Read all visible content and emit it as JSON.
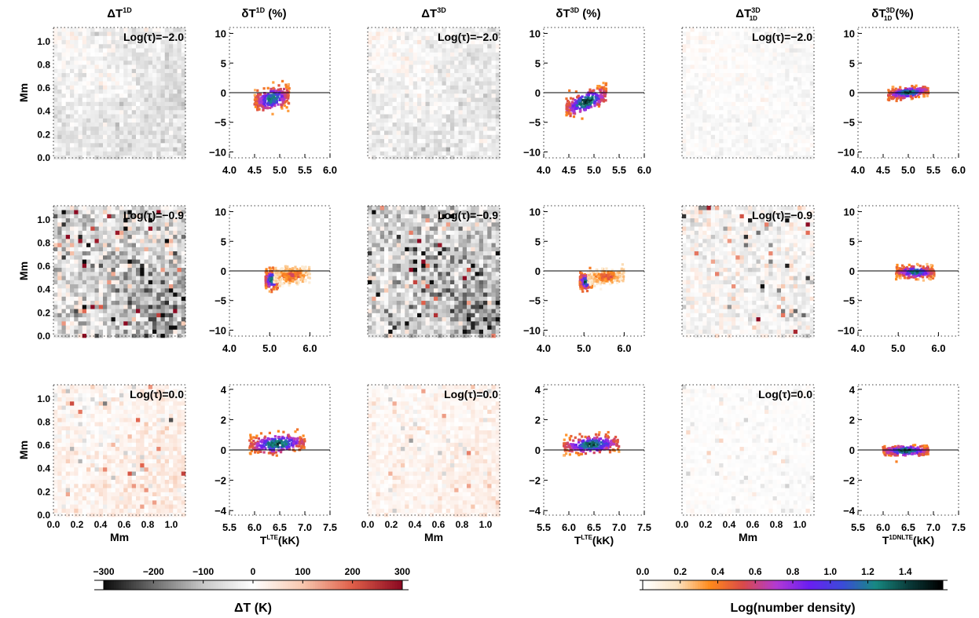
{
  "figure": {
    "column_titles": [
      {
        "main": "ΔT",
        "sup": "1D",
        "sub": "",
        "tail": ""
      },
      {
        "main": "δT",
        "sup": "1D",
        "sub": "",
        "tail": " (%)"
      },
      {
        "main": "ΔT",
        "sup": "3D",
        "sub": "",
        "tail": ""
      },
      {
        "main": "δT",
        "sup": "3D",
        "sub": "",
        "tail": " (%)"
      },
      {
        "main": "ΔT",
        "sup": "3D",
        "sub": "1D",
        "tail": ""
      },
      {
        "main": "δT",
        "sup": "3D",
        "sub": "1D",
        "tail": " (%)"
      }
    ],
    "row_labels": [
      "Log(τ)=−2.0",
      "Log(τ)=−0.9",
      "Log(τ)=0.0"
    ],
    "map_axis_label": "Mm",
    "map_ticks": [
      "0.0",
      "0.2",
      "0.4",
      "0.6",
      "0.8",
      "1.0"
    ],
    "map_tick_values": [
      0.0,
      0.2,
      0.4,
      0.6,
      0.8,
      1.0
    ],
    "scatter_xlabels": [
      {
        "main": "T",
        "sup": "LTE",
        "tail": "(kK)"
      },
      {
        "main": "T",
        "sup": "LTE",
        "tail": "(kK)"
      },
      {
        "main": "T",
        "sup": "1DNLTE",
        "tail": "(kK)"
      }
    ],
    "colorbar_left": {
      "label": "ΔT (K)",
      "ticks": [
        "−300",
        "−200",
        "−100",
        "0",
        "100",
        "200",
        "300"
      ],
      "tick_values": [
        -300,
        -200,
        -100,
        0,
        100,
        200,
        300
      ],
      "range": [
        -300,
        300
      ],
      "colors": [
        "#0d0d0d",
        "#6e6e6e",
        "#c8c8c8",
        "#ffffff",
        "#f7c8b0",
        "#e0604a",
        "#8c0a22"
      ]
    },
    "colorbar_right": {
      "label": "Log(number density)",
      "ticks": [
        "0.0",
        "0.2",
        "0.4",
        "0.6",
        "0.8",
        "1.0",
        "1.2",
        "1.4"
      ],
      "tick_values": [
        0,
        0.2,
        0.4,
        0.6,
        0.8,
        1.0,
        1.2,
        1.4
      ],
      "range": [
        0,
        1.6
      ],
      "colors": [
        "#ffffff",
        "#fbe3c2",
        "#ff8a1a",
        "#d94a4a",
        "#b23ad3",
        "#6a1ef2",
        "#3b4bd8",
        "#178a82",
        "#0a3b3a",
        "#000000"
      ]
    }
  },
  "chart_data": [
    {
      "type": "heatmap",
      "title": "ΔT 1D",
      "row": "Log(τ)=−2.0",
      "xlabel": "",
      "ylabel": "Mm",
      "xlim": [
        0,
        1.12
      ],
      "ylim": [
        0,
        1.12
      ],
      "mean_value": -60,
      "spread": 50
    },
    {
      "type": "scatter",
      "title": "δT 1D (%)",
      "row": "Log(τ)=−2.0",
      "xlim": [
        4.0,
        6.0
      ],
      "ylim": [
        -11,
        11
      ],
      "xticks": [
        4.0,
        4.5,
        5.0,
        5.5,
        6.0
      ],
      "yticks": [
        -10,
        -5,
        0,
        5,
        10
      ],
      "reference_y": 0,
      "clusters": [
        {
          "x": [
            4.5,
            5.2
          ],
          "y_center": -1.0,
          "y_spread": 1.6,
          "slope": 3.0,
          "max_density": 1.3
        }
      ]
    },
    {
      "type": "heatmap",
      "title": "ΔT 3D",
      "row": "Log(τ)=−2.0",
      "xlabel": "",
      "ylabel": "",
      "xlim": [
        0,
        1.12
      ],
      "ylim": [
        0,
        1.12
      ],
      "mean_value": -50,
      "spread": 50
    },
    {
      "type": "scatter",
      "title": "δT 3D (%)",
      "row": "Log(τ)=−2.0",
      "xlim": [
        4.0,
        6.0
      ],
      "ylim": [
        -11,
        11
      ],
      "xticks": [
        4.0,
        4.5,
        5.0,
        5.5,
        6.0
      ],
      "yticks": [
        -10,
        -5,
        0,
        5,
        10
      ],
      "reference_y": 0,
      "clusters": [
        {
          "x": [
            4.45,
            5.25
          ],
          "y_center": -1.5,
          "y_spread": 1.4,
          "slope": 5.0,
          "max_density": 1.5
        }
      ]
    },
    {
      "type": "heatmap",
      "title": "ΔT 3D/1D",
      "row": "Log(τ)=−2.0",
      "xlabel": "",
      "ylabel": "",
      "xlim": [
        0,
        1.12
      ],
      "ylim": [
        0,
        1.12
      ],
      "mean_value": -15,
      "spread": 25
    },
    {
      "type": "scatter",
      "title": "δT 3D/1D (%)",
      "row": "Log(τ)=−2.0",
      "xlim": [
        4.0,
        6.0
      ],
      "ylim": [
        -11,
        11
      ],
      "xticks": [
        4.0,
        4.5,
        5.0,
        5.5,
        6.0
      ],
      "yticks": [
        -10,
        -5,
        0,
        5,
        10
      ],
      "reference_y": 0,
      "clusters": [
        {
          "x": [
            4.6,
            5.4
          ],
          "y_center": 0.0,
          "y_spread": 0.7,
          "slope": 1.5,
          "max_density": 1.4
        }
      ]
    },
    {
      "type": "heatmap",
      "title": "ΔT 1D",
      "row": "Log(τ)=−0.9",
      "xlabel": "",
      "ylabel": "Mm",
      "xlim": [
        0,
        1.12
      ],
      "ylim": [
        0,
        1.12
      ],
      "mean_value": -80,
      "spread": 120
    },
    {
      "type": "scatter",
      "title": "δT 1D (%)",
      "row": "Log(τ)=−0.9",
      "xlim": [
        4.0,
        6.5
      ],
      "ylim": [
        -11,
        11
      ],
      "xticks": [
        4.0,
        5.0,
        6.0
      ],
      "yticks": [
        -10,
        -5,
        0,
        5,
        10
      ],
      "reference_y": 0,
      "clusters": [
        {
          "x": [
            4.9,
            5.2
          ],
          "y_center": -1.5,
          "y_spread": 1.2,
          "slope": 0,
          "max_density": 1.4
        },
        {
          "x": [
            5.1,
            6.0
          ],
          "y_center": -0.8,
          "y_spread": 1.2,
          "slope": 0.5,
          "max_density": 0.5
        }
      ]
    },
    {
      "type": "heatmap",
      "title": "ΔT 3D",
      "row": "Log(τ)=−0.9",
      "xlabel": "",
      "ylabel": "",
      "xlim": [
        0,
        1.12
      ],
      "ylim": [
        0,
        1.12
      ],
      "mean_value": -90,
      "spread": 110
    },
    {
      "type": "scatter",
      "title": "δT 3D (%)",
      "row": "Log(τ)=−0.9",
      "xlim": [
        4.0,
        6.5
      ],
      "ylim": [
        -11,
        11
      ],
      "xticks": [
        4.0,
        5.0,
        6.0
      ],
      "yticks": [
        -10,
        -5,
        0,
        5,
        10
      ],
      "reference_y": 0,
      "clusters": [
        {
          "x": [
            4.9,
            5.2
          ],
          "y_center": -1.8,
          "y_spread": 1.0,
          "slope": 0,
          "max_density": 1.4
        },
        {
          "x": [
            5.1,
            6.0
          ],
          "y_center": -1.0,
          "y_spread": 1.0,
          "slope": 0.4,
          "max_density": 0.5
        }
      ]
    },
    {
      "type": "heatmap",
      "title": "ΔT 3D/1D",
      "row": "Log(τ)=−0.9",
      "xlabel": "",
      "ylabel": "",
      "xlim": [
        0,
        1.12
      ],
      "ylim": [
        0,
        1.12
      ],
      "mean_value": -10,
      "spread": 60
    },
    {
      "type": "scatter",
      "title": "δT 3D/1D (%)",
      "row": "Log(τ)=−0.9",
      "xlim": [
        4.0,
        6.5
      ],
      "ylim": [
        -11,
        11
      ],
      "xticks": [
        4.0,
        5.0,
        6.0
      ],
      "yticks": [
        -10,
        -5,
        0,
        5,
        10
      ],
      "reference_y": 0,
      "clusters": [
        {
          "x": [
            4.95,
            5.9
          ],
          "y_center": -0.2,
          "y_spread": 0.8,
          "slope": 0,
          "max_density": 1.3
        }
      ]
    },
    {
      "type": "heatmap",
      "title": "ΔT 1D",
      "row": "Log(τ)=0.0",
      "xlabel": "Mm",
      "ylabel": "Mm",
      "xlim": [
        0,
        1.12
      ],
      "ylim": [
        0,
        1.12
      ],
      "mean_value": 30,
      "spread": 40
    },
    {
      "type": "scatter",
      "title": "δT 1D (%)",
      "row": "Log(τ)=0.0",
      "xlabel": "T LTE (kK)",
      "xlim": [
        5.5,
        7.5
      ],
      "ylim": [
        -4.3,
        4.3
      ],
      "xticks": [
        5.5,
        6.0,
        6.5,
        7.0,
        7.5
      ],
      "yticks": [
        -4,
        -2,
        0,
        2,
        4
      ],
      "reference_y": 0,
      "clusters": [
        {
          "x": [
            5.9,
            7.0
          ],
          "y_center": 0.4,
          "y_spread": 0.5,
          "slope": 0.4,
          "max_density": 1.4
        }
      ]
    },
    {
      "type": "heatmap",
      "title": "ΔT 3D",
      "row": "Log(τ)=0.0",
      "xlabel": "Mm",
      "ylabel": "",
      "xlim": [
        0,
        1.12
      ],
      "ylim": [
        0,
        1.12
      ],
      "mean_value": 25,
      "spread": 30
    },
    {
      "type": "scatter",
      "title": "δT 3D (%)",
      "row": "Log(τ)=0.0",
      "xlabel": "T LTE (kK)",
      "xlim": [
        5.5,
        7.5
      ],
      "ylim": [
        -4.3,
        4.3
      ],
      "xticks": [
        5.5,
        6.0,
        6.5,
        7.0,
        7.5
      ],
      "yticks": [
        -4,
        -2,
        0,
        2,
        4
      ],
      "reference_y": 0,
      "clusters": [
        {
          "x": [
            5.9,
            7.0
          ],
          "y_center": 0.35,
          "y_spread": 0.45,
          "slope": 0.3,
          "max_density": 1.4
        }
      ]
    },
    {
      "type": "heatmap",
      "title": "ΔT 3D/1D",
      "row": "Log(τ)=0.0",
      "xlabel": "Mm",
      "ylabel": "",
      "xlim": [
        0,
        1.12
      ],
      "ylim": [
        0,
        1.12
      ],
      "mean_value": -2,
      "spread": 15
    },
    {
      "type": "scatter",
      "title": "δT 3D/1D (%)",
      "row": "Log(τ)=0.0",
      "xlabel": "T 1DNLTE (kK)",
      "xlim": [
        5.5,
        7.5
      ],
      "ylim": [
        -4.3,
        4.3
      ],
      "xticks": [
        5.5,
        6.0,
        6.5,
        7.0,
        7.5
      ],
      "yticks": [
        -4,
        -2,
        0,
        2,
        4
      ],
      "reference_y": 0,
      "clusters": [
        {
          "x": [
            6.0,
            6.9
          ],
          "y_center": -0.05,
          "y_spread": 0.25,
          "slope": 0,
          "max_density": 1.5
        }
      ]
    }
  ]
}
